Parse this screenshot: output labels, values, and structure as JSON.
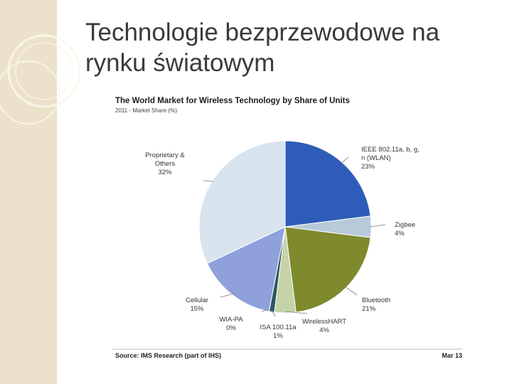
{
  "slide": {
    "title": "Technologie bezprzewodowe na rynku światowym"
  },
  "chart_data": {
    "type": "pie",
    "title": "The World Market for Wireless Technology by Share of Units",
    "subtitle": "2011 - Market Share (%)",
    "source": "Source: IMS Research (part of IHS)",
    "date": "Mar 13",
    "legend": "none",
    "slices": [
      {
        "label": [
          "IEEE 802.11a, b, g,",
          "n (WLAN)"
        ],
        "value_label": "23%",
        "value": 23,
        "color": "#2e5cb8"
      },
      {
        "label": [
          "Zigbee"
        ],
        "value_label": "4%",
        "value": 4,
        "color": "#b8c9d9"
      },
      {
        "label": [
          "Bluetooth"
        ],
        "value_label": "21%",
        "value": 21,
        "color": "#7e8a2c"
      },
      {
        "label": [
          "WirelessHART"
        ],
        "value_label": "4%",
        "value": 4,
        "color": "#c5d3a8"
      },
      {
        "label": [
          "ISA 100.11a"
        ],
        "value_label": "1%",
        "value": 1,
        "color": "#2a5560"
      },
      {
        "label": [
          "WIA-PA"
        ],
        "value_label": "0%",
        "value": 0,
        "color": "#6b3a8a"
      },
      {
        "label": [
          "Cellular"
        ],
        "value_label": "15%",
        "value": 15,
        "color": "#8fa0db"
      },
      {
        "label": [
          "Proprietary &",
          "Others"
        ],
        "value_label": "32%",
        "value": 32,
        "color": "#d8e4ee"
      }
    ]
  }
}
